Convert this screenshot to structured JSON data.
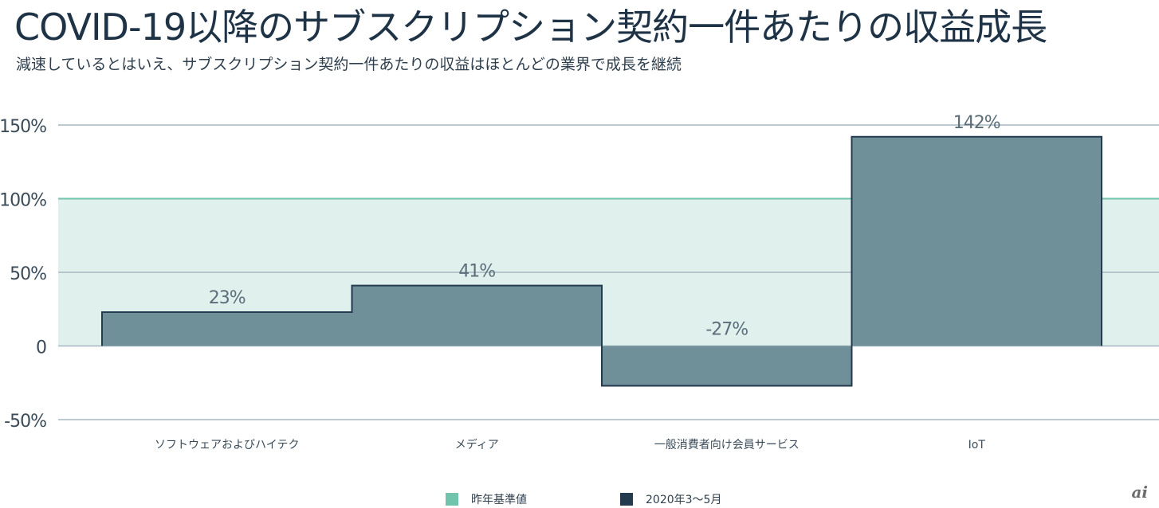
{
  "title": "COVID-19以降のサブスクリプション契約一件あたりの収益成長",
  "subtitle": "減速しているとはいえ、サブスクリプション契約一件あたりの収益はほとんどの業界で成長を継続",
  "legend": {
    "baseline_label": "昨年基準値",
    "series_label": "2020年3〜5月"
  },
  "colors": {
    "baseline_band": "#dff0ed",
    "baseline_line": "#72c3ac",
    "bar_fill": "#6f9099",
    "bar_stroke": "#233a4f",
    "grid": "#a8b8c2",
    "series_legend": "#233a4f",
    "baseline_legend": "#72c3ac"
  },
  "logo": "ai",
  "chart_data": {
    "type": "bar",
    "title": "COVID-19以降のサブスクリプション契約一件あたりの収益成長",
    "subtitle": "減速しているとはいえ、サブスクリプション契約一件あたりの収益はほとんどの業界で成長を継続",
    "categories": [
      "ソフトウェアおよびハイテク",
      "メディア",
      "一般消費者向け会員サービス",
      "IoT"
    ],
    "series": [
      {
        "name": "2020年3〜5月",
        "values": [
          23,
          41,
          -27,
          142
        ],
        "labels": [
          "23%",
          "41%",
          "-27%",
          "142%"
        ]
      }
    ],
    "baseline": {
      "name": "昨年基準値",
      "value": 100
    },
    "ylim": [
      -50,
      150
    ],
    "yticks": [
      150,
      100,
      50,
      0,
      -50
    ],
    "ytick_labels": [
      "150%",
      "100%",
      "50%",
      "0",
      "-50%"
    ],
    "xlabel": "",
    "ylabel": "",
    "grid": true,
    "legend_position": "bottom-center"
  }
}
